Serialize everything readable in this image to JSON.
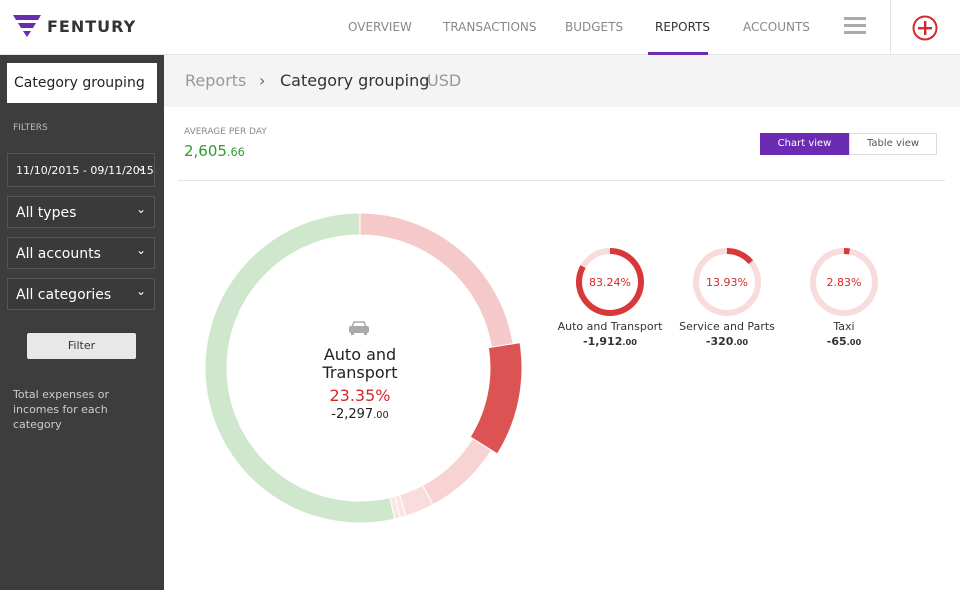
{
  "header": {
    "brand": "FENTURY",
    "nav": [
      "OVERVIEW",
      "TRANSACTIONS",
      "BUDGETS",
      "REPORTS",
      "ACCOUNTS"
    ],
    "active": 3
  },
  "sidebar": {
    "grouping": "Category grouping",
    "filters_label": "FILTERS",
    "date_range": "11/10/2015 - 09/11/2015",
    "selects": [
      "All types",
      "All accounts",
      "All categories"
    ],
    "button": "Filter",
    "note": "Total expenses or incomes for each category"
  },
  "breadcrumb": {
    "root": "Reports",
    "separator": "›",
    "current": "Category grouping",
    "currency": "USD"
  },
  "summary": {
    "label": "AVERAGE PER DAY",
    "amount": "2,605",
    "cents": ".66"
  },
  "views": [
    "Chart view",
    "Table view"
  ],
  "donut": {
    "title": "Auto and Transport",
    "percent": {
      "value": 23.35,
      "label": "23.35%"
    },
    "amount": "-2,297",
    "cents": ".00",
    "segments": [
      {
        "value": 22.5,
        "color": "#f5c9c9"
      },
      {
        "value": 11.4,
        "color": "#dc5353",
        "highlight": true
      },
      {
        "value": 8.3,
        "color": "#f7d3d3"
      },
      {
        "value": 3.0,
        "color": "#f9dcdc"
      },
      {
        "value": 0.6,
        "color": "#fbe4e4"
      },
      {
        "value": 0.6,
        "color": "#fbe4e4"
      },
      {
        "value": 53.6,
        "color": "#cfe8cd"
      }
    ]
  },
  "categories": [
    {
      "name": "Auto and Transport",
      "percent": {
        "value": 83.24,
        "label": "83.24%"
      },
      "amount": "-1,912",
      "cents": ".00"
    },
    {
      "name": "Service and Parts",
      "percent": {
        "value": 13.93,
        "label": "13.93%"
      },
      "amount": "-320",
      "cents": ".00"
    },
    {
      "name": "Taxi",
      "percent": {
        "value": 2.83,
        "label": "2.83%"
      },
      "amount": "-65",
      "cents": ".00"
    }
  ]
}
